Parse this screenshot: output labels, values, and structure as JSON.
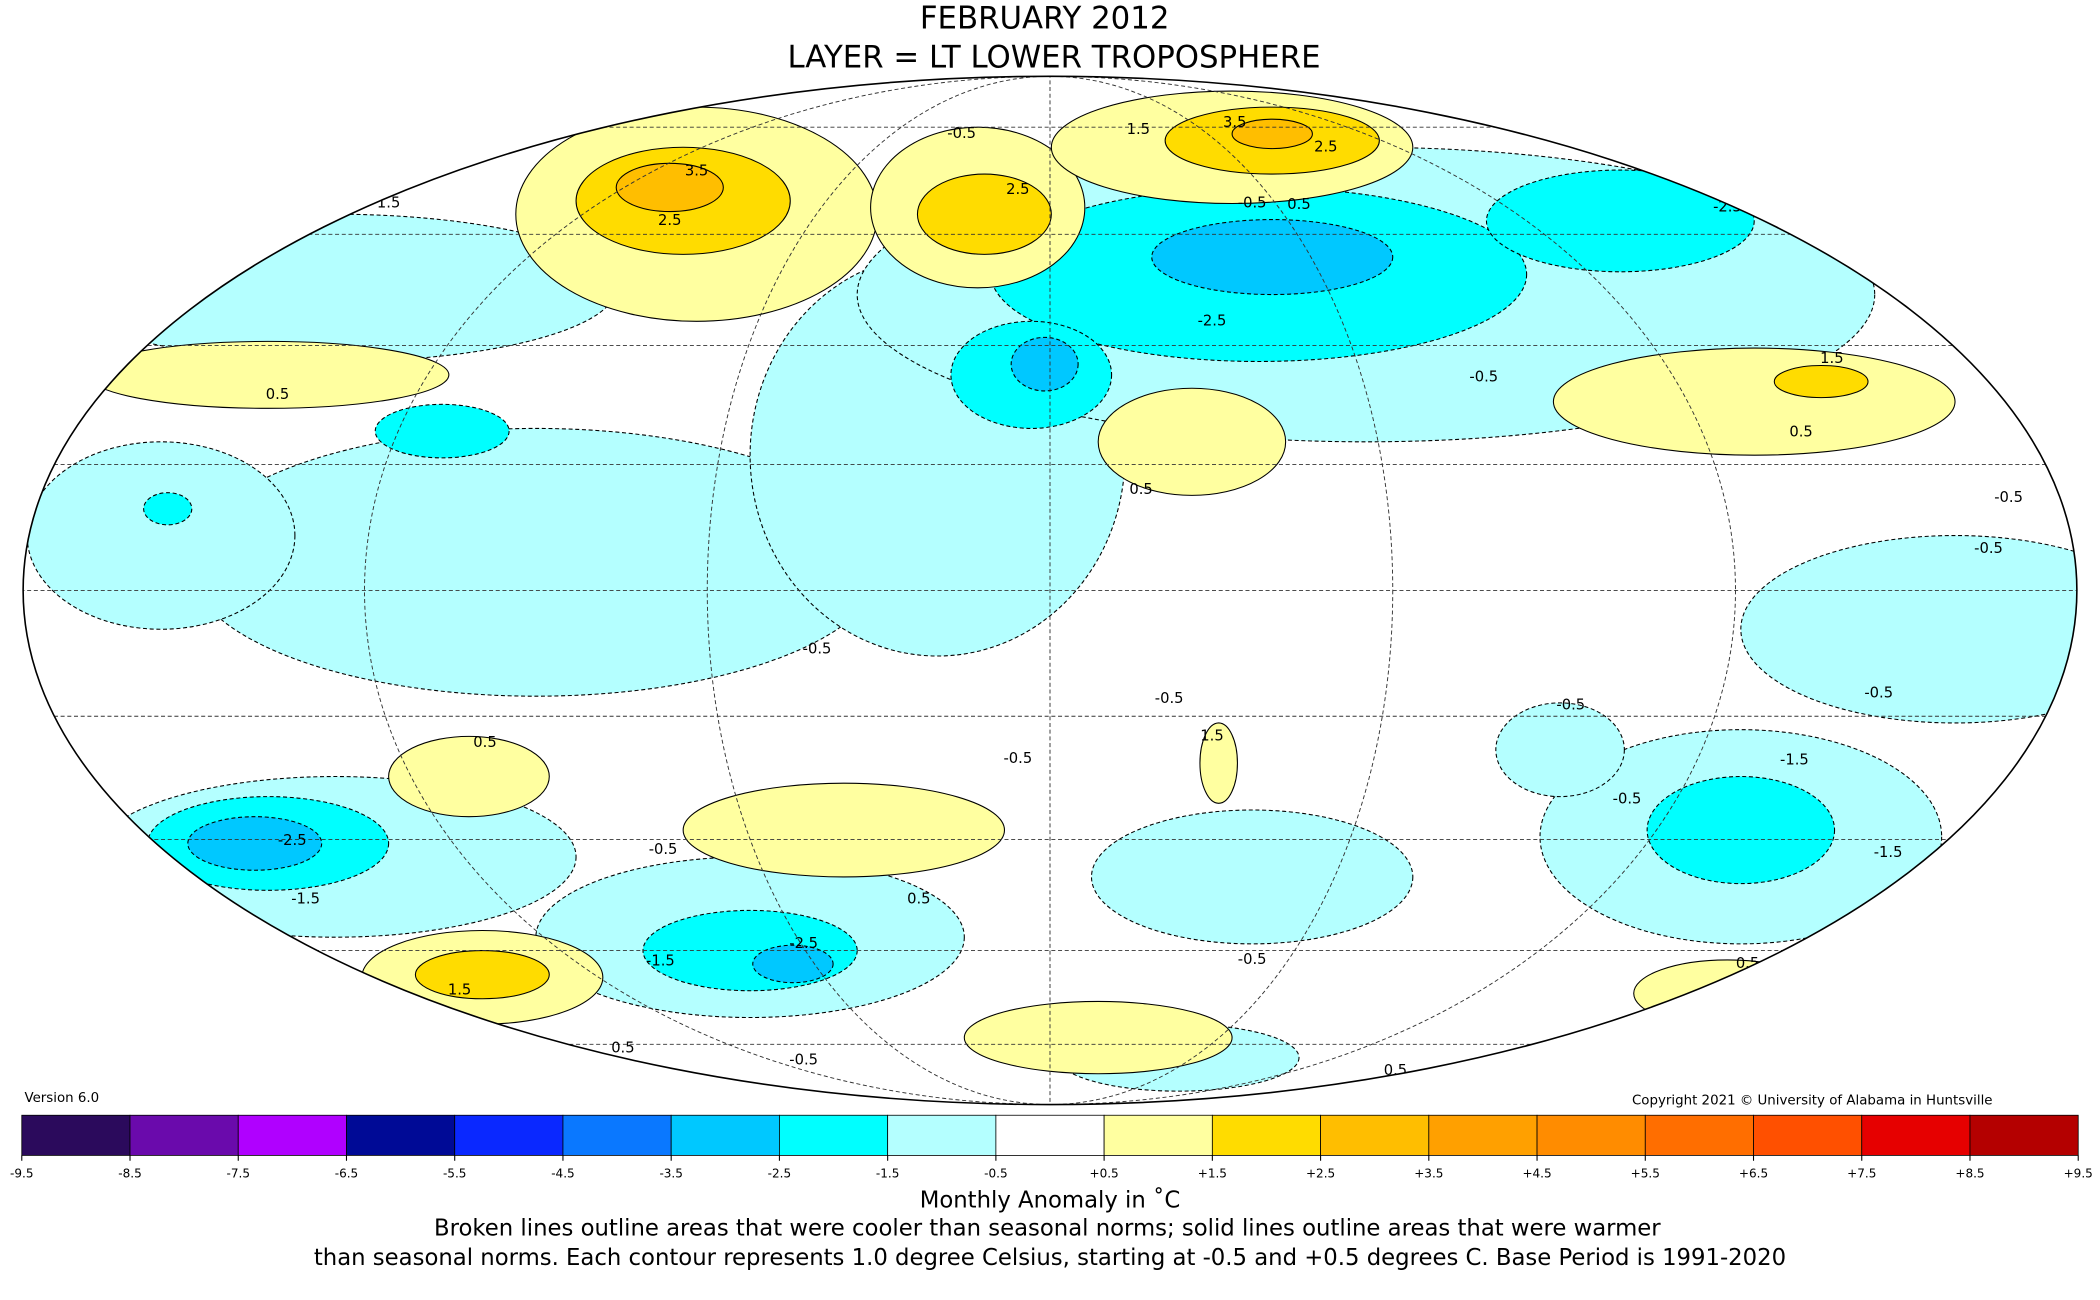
{
  "title_lines": [
    "FEBRUARY 2012",
    "LAYER = LT LOWER TROPOSPHERE"
  ],
  "version": "Version 6.0",
  "copyright": "Copyright 2021 © University of Alabama in Huntsville",
  "contour_labels": [
    3.5,
    2.5,
    2.5,
    1.5,
    3.5,
    2.5,
    -0.5,
    0.5,
    -0.5,
    1.5,
    -2.5,
    0.5,
    -2.5,
    1.5,
    0.5,
    -0.5,
    0.5,
    -0.5,
    -0.5,
    -0.5,
    -0.5,
    -0.5,
    0.5,
    -0.5,
    -0.5,
    -2.5,
    -1.5,
    -1.5,
    -0.5,
    -1.5,
    0.5,
    -1.5,
    -2.5,
    1.5,
    -0.5,
    0.5,
    0.5,
    -0.5,
    0.5,
    -0.5,
    1.5
  ],
  "colorbar": {
    "colors": [
      "#2b0a5c",
      "#6a0aac",
      "#b000ff",
      "#000a96",
      "#0a28ff",
      "#0a78ff",
      "#00c8ff",
      "#00ffff",
      "#b4ffff",
      "#ffffff",
      "#ffffa0",
      "#ffdc00",
      "#ffbe00",
      "#ffa000",
      "#ff8c00",
      "#ff6e00",
      "#ff5000",
      "#e60000",
      "#b40000"
    ],
    "ticks": [
      -9.5,
      -8.5,
      -7.5,
      -6.5,
      -5.5,
      -4.5,
      -3.5,
      -2.5,
      -1.5,
      -0.5,
      {
        "value": 0.5,
        "label": "+0.5"
      },
      {
        "value": 1.5,
        "label": "+1.5"
      },
      {
        "value": 2.5,
        "label": "+2.5"
      },
      {
        "value": 3.5,
        "label": "+3.5"
      },
      {
        "value": 4.5,
        "label": "+4.5"
      },
      {
        "value": 5.5,
        "label": "+5.5"
      },
      {
        "value": 6.5,
        "label": "+6.5"
      },
      {
        "value": 7.5,
        "label": "+7.5"
      },
      {
        "value": 8.5,
        "label": "+8.5"
      },
      {
        "value": 9.5,
        "label": "+9.5"
      }
    ],
    "label": "Monthly Anomaly in ˚C"
  },
  "footnote_lines": [
    "Broken lines outline areas that were cooler than seasonal norms; solid lines outline areas that were warmer",
    "than seasonal norms. Each contour represents 1.0 degree Celsius, starting at -0.5 and +0.5 degrees C. Base Period is 1991-2020"
  ]
}
